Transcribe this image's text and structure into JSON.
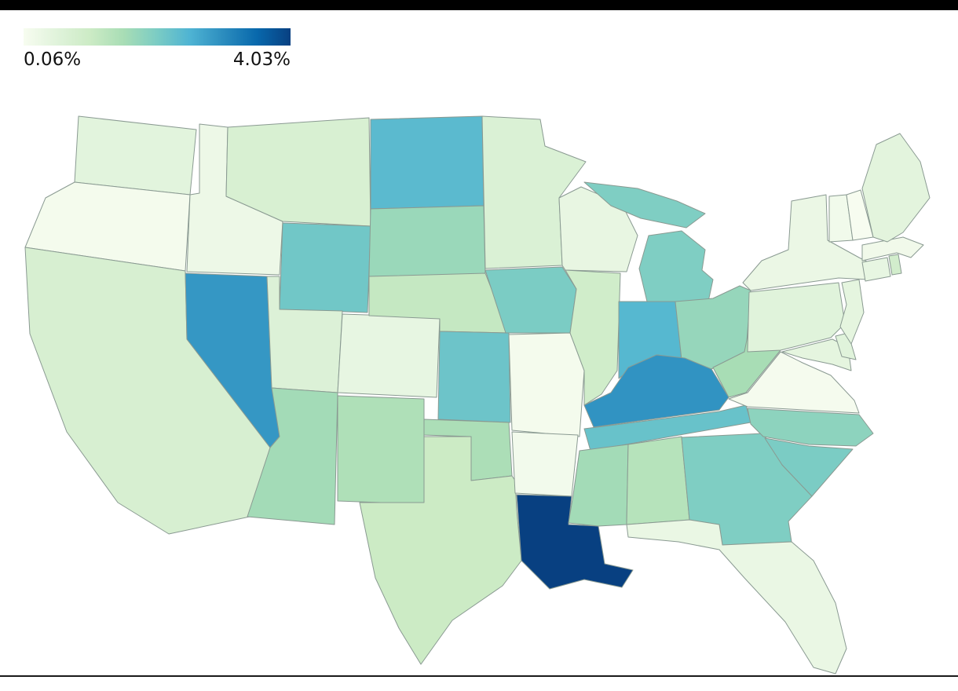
{
  "top_bar": {
    "color": "#000000"
  },
  "bottom_rule": {
    "color": "#1a1a1a"
  },
  "chart_data": {
    "type": "choropleth",
    "title": "",
    "region": "United States (contiguous 48 states)",
    "value_unit": "%",
    "domain": [
      0.06,
      4.03
    ],
    "legend": {
      "min_label": "0.06%",
      "max_label": "4.03%",
      "position": "top-left",
      "orientation": "horizontal"
    },
    "colormap": {
      "name": "GnBu",
      "stops": [
        "#f7fcf0",
        "#e0f3db",
        "#ccebc5",
        "#a8ddb5",
        "#7bccc4",
        "#4eb3d3",
        "#2b8cbe",
        "#0868ac",
        "#084081"
      ]
    },
    "states": [
      {
        "abbr": "WA",
        "name": "Washington",
        "value": 0.52
      },
      {
        "abbr": "OR",
        "name": "Oregon",
        "value": 0.12
      },
      {
        "abbr": "CA",
        "name": "California",
        "value": 0.78
      },
      {
        "abbr": "NV",
        "name": "Nevada",
        "value": 2.9
      },
      {
        "abbr": "ID",
        "name": "Idaho",
        "value": 0.28
      },
      {
        "abbr": "MT",
        "name": "Montana",
        "value": 0.75
      },
      {
        "abbr": "WY",
        "name": "Wyoming",
        "value": 2.15
      },
      {
        "abbr": "UT",
        "name": "Utah",
        "value": 0.65
      },
      {
        "abbr": "CO",
        "name": "Colorado",
        "value": 0.4
      },
      {
        "abbr": "AZ",
        "name": "Arizona",
        "value": 1.6
      },
      {
        "abbr": "NM",
        "name": "New Mexico",
        "value": 1.45
      },
      {
        "abbr": "ND",
        "name": "North Dakota",
        "value": 2.4
      },
      {
        "abbr": "SD",
        "name": "South Dakota",
        "value": 1.7
      },
      {
        "abbr": "NE",
        "name": "Nebraska",
        "value": 1.15
      },
      {
        "abbr": "KS",
        "name": "Kansas",
        "value": 2.2
      },
      {
        "abbr": "OK",
        "name": "Oklahoma",
        "value": 1.5
      },
      {
        "abbr": "TX",
        "name": "Texas",
        "value": 1.05
      },
      {
        "abbr": "MN",
        "name": "Minnesota",
        "value": 0.7
      },
      {
        "abbr": "IA",
        "name": "Iowa",
        "value": 2.05
      },
      {
        "abbr": "MO",
        "name": "Missouri",
        "value": 0.12
      },
      {
        "abbr": "AR",
        "name": "Arkansas",
        "value": 0.16
      },
      {
        "abbr": "LA",
        "name": "Louisiana",
        "value": 4.03
      },
      {
        "abbr": "WI",
        "name": "Wisconsin",
        "value": 0.38
      },
      {
        "abbr": "IL",
        "name": "Illinois",
        "value": 0.95
      },
      {
        "abbr": "MI",
        "name": "Michigan",
        "value": 2.0
      },
      {
        "abbr": "IN",
        "name": "Indiana",
        "value": 2.45
      },
      {
        "abbr": "OH",
        "name": "Ohio",
        "value": 1.75
      },
      {
        "abbr": "KY",
        "name": "Kentucky",
        "value": 2.95
      },
      {
        "abbr": "TN",
        "name": "Tennessee",
        "value": 2.25
      },
      {
        "abbr": "MS",
        "name": "Mississippi",
        "value": 1.6
      },
      {
        "abbr": "AL",
        "name": "Alabama",
        "value": 1.35
      },
      {
        "abbr": "GA",
        "name": "Georgia",
        "value": 2.0
      },
      {
        "abbr": "FL",
        "name": "Florida",
        "value": 0.35
      },
      {
        "abbr": "SC",
        "name": "South Carolina",
        "value": 2.05
      },
      {
        "abbr": "NC",
        "name": "North Carolina",
        "value": 1.85
      },
      {
        "abbr": "VA",
        "name": "Virginia",
        "value": 0.1
      },
      {
        "abbr": "WV",
        "name": "West Virginia",
        "value": 1.55
      },
      {
        "abbr": "MD",
        "name": "Maryland",
        "value": 0.45
      },
      {
        "abbr": "DE",
        "name": "Delaware",
        "value": 0.55
      },
      {
        "abbr": "PA",
        "name": "Pennsylvania",
        "value": 0.55
      },
      {
        "abbr": "NJ",
        "name": "New Jersey",
        "value": 0.45
      },
      {
        "abbr": "NY",
        "name": "New York",
        "value": 0.32
      },
      {
        "abbr": "CT",
        "name": "Connecticut",
        "value": 0.4
      },
      {
        "abbr": "RI",
        "name": "Rhode Island",
        "value": 0.9
      },
      {
        "abbr": "MA",
        "name": "Massachusetts",
        "value": 0.2
      },
      {
        "abbr": "VT",
        "name": "Vermont",
        "value": 0.18
      },
      {
        "abbr": "NH",
        "name": "New Hampshire",
        "value": 0.06
      },
      {
        "abbr": "ME",
        "name": "Maine",
        "value": 0.5
      }
    ]
  }
}
